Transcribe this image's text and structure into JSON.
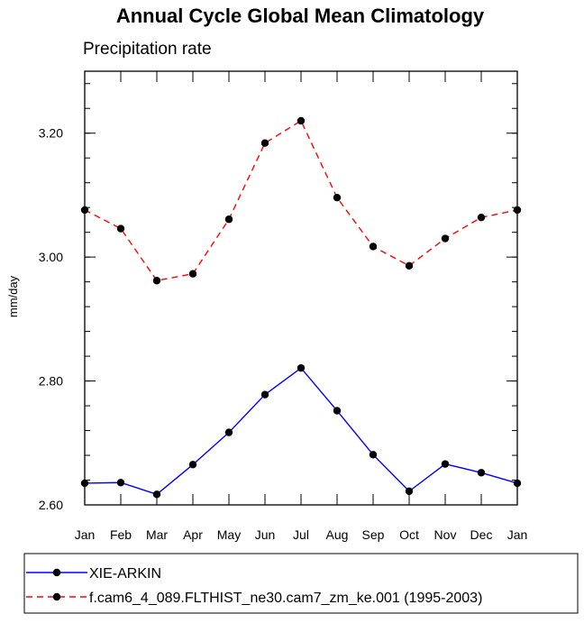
{
  "chart_data": {
    "type": "line",
    "title": "Annual Cycle Global Mean Climatology",
    "subtitle": "Precipitation rate",
    "xlabel": "",
    "ylabel": "mm/day",
    "categories": [
      "Jan",
      "Feb",
      "Mar",
      "Apr",
      "May",
      "Jun",
      "Jul",
      "Aug",
      "Sep",
      "Oct",
      "Nov",
      "Dec",
      "Jan"
    ],
    "ylim": [
      2.6,
      3.3
    ],
    "yticks": [
      2.6,
      2.8,
      3.0,
      3.2
    ],
    "ytick_labels": [
      "2.60",
      "2.80",
      "3.00",
      "3.20"
    ],
    "yminor_step": 0.04,
    "grid": false,
    "legend_position": "bottom",
    "series": [
      {
        "name": "XIE-ARKIN",
        "values": [
          2.635,
          2.636,
          2.617,
          2.665,
          2.717,
          2.778,
          2.821,
          2.752,
          2.681,
          2.622,
          2.666,
          2.652,
          2.635
        ],
        "color": "#0000ff",
        "dashed": false
      },
      {
        "name": "f.cam6_4_089.FLTHIST_ne30.cam7_zm_ke.001 (1995-2003)",
        "values": [
          3.076,
          3.046,
          2.962,
          2.973,
          3.061,
          3.184,
          3.22,
          3.096,
          3.017,
          2.986,
          3.03,
          3.064,
          3.076
        ],
        "color": "#ff0000",
        "dashed": true
      }
    ]
  }
}
